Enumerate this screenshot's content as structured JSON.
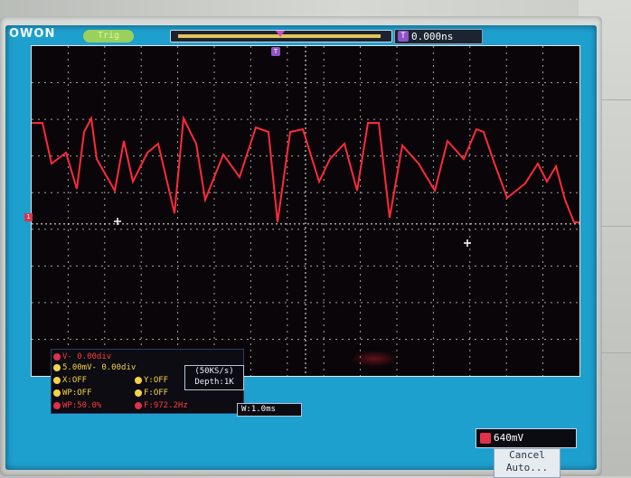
{
  "header": {
    "logo": "OWON",
    "trigger_status": "Trig",
    "time_offset_tag": "T",
    "time_offset": "0.000ns"
  },
  "markers": {
    "channel": "1",
    "trigger_top": "T"
  },
  "measurements": {
    "row1": "V-      0.00div",
    "row2": "5.00mV-  0.00div",
    "x_off": "X:OFF",
    "y_off": "Y:OFF",
    "wp_off": "WP:OFF",
    "f_off": "F:OFF",
    "wp_value": "WP:50.0%",
    "frequency": "F:972.2Hz"
  },
  "acquisition": {
    "rate": "(50KS/s)",
    "depth": "Depth:1K"
  },
  "timebase": "W:1.0ms",
  "trigger_level": "640mV",
  "menu": {
    "cancel": "Cancel",
    "auto": "Auto..."
  },
  "colors": {
    "screen_border": "#1ea0cf",
    "waveform": "#ff2a3c",
    "grid_bg": "#0a0508",
    "trigger_purple": "#8f52c8"
  },
  "icons": {
    "channel_marker": "channel-1-marker-icon",
    "trigger_marker": "trigger-position-icon"
  }
}
